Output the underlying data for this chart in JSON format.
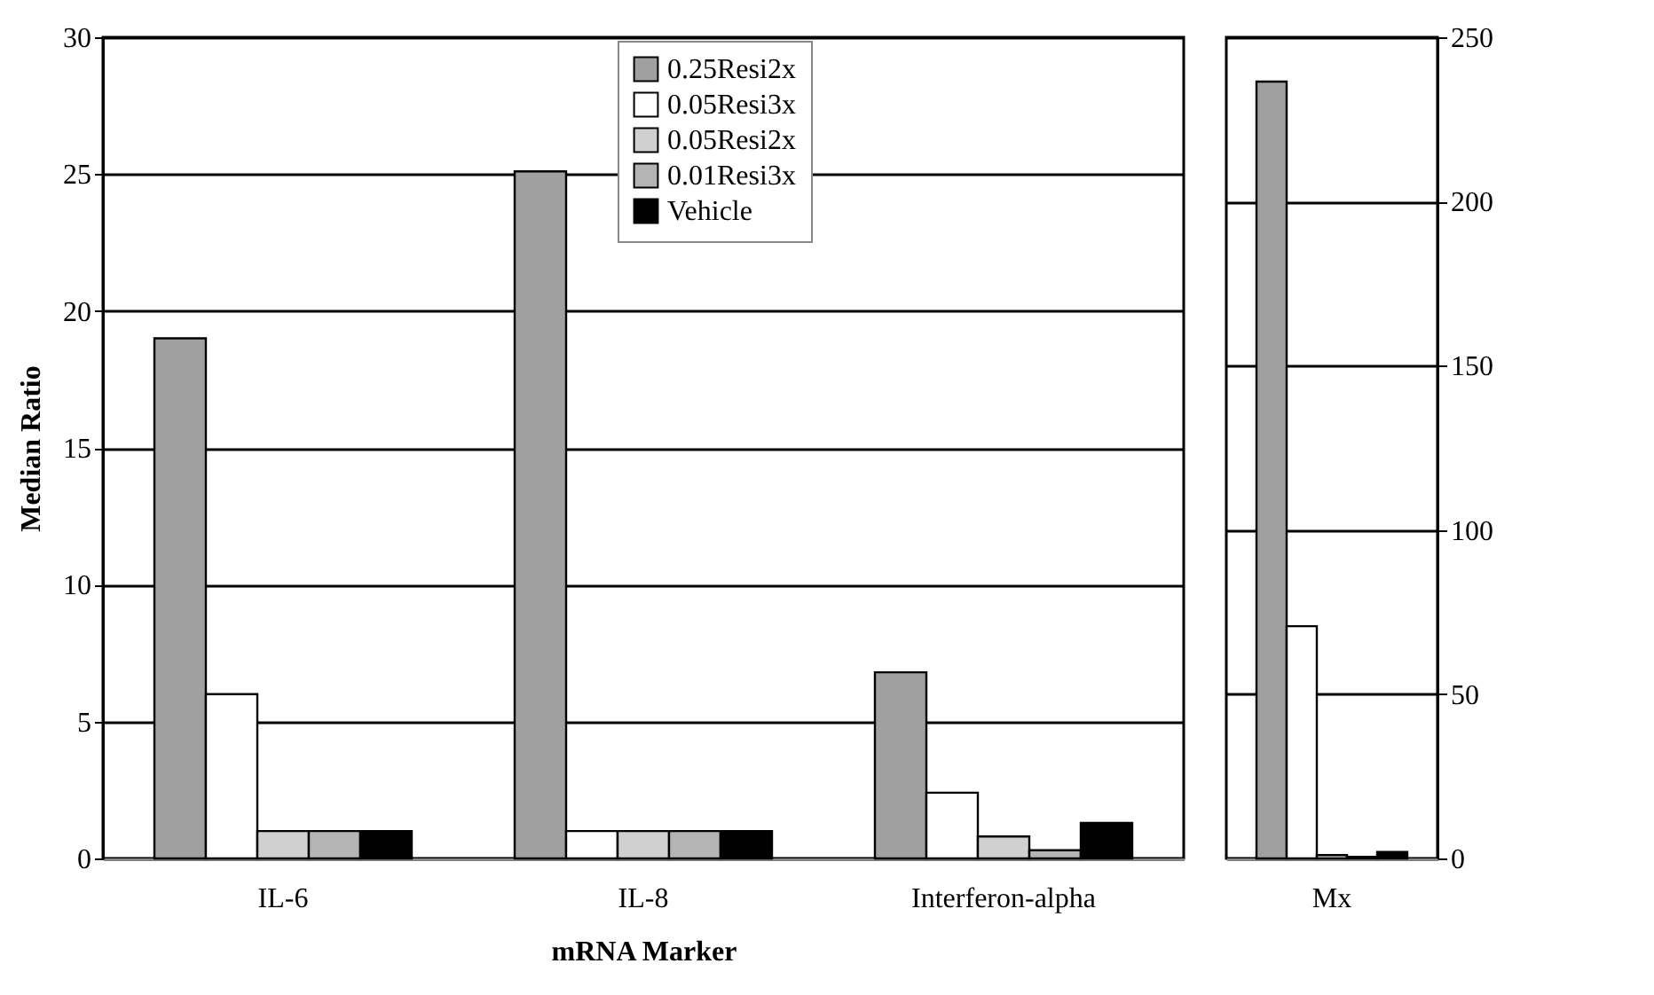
{
  "chart_data": [
    {
      "type": "bar",
      "categories": [
        "IL-6",
        "IL-8",
        "Interferon-alpha"
      ],
      "xlabel": "mRNA Marker",
      "ylabel": "Median Ratio",
      "ylim": [
        0,
        30
      ],
      "yticks": [
        0,
        5,
        10,
        15,
        20,
        25,
        30
      ],
      "grid": "y",
      "legend": "top",
      "series": [
        {
          "name": "0.25Resi2x",
          "color": "#a0a0a0",
          "values": [
            19.0,
            25.1,
            6.8
          ]
        },
        {
          "name": "0.05Resi3x",
          "color": "#ffffff",
          "values": [
            6.0,
            1.0,
            2.4
          ]
        },
        {
          "name": "0.05Resi2x",
          "color": "#d0d0d0",
          "values": [
            1.0,
            1.0,
            0.8
          ]
        },
        {
          "name": "0.01Resi3x",
          "color": "#b4b4b4",
          "values": [
            1.0,
            1.0,
            0.3
          ]
        },
        {
          "name": "Vehicle",
          "color": "#000000",
          "values": [
            1.0,
            1.0,
            1.3
          ]
        }
      ]
    },
    {
      "type": "bar",
      "categories": [
        "Mx"
      ],
      "y2lim": [
        0,
        250
      ],
      "y2ticks": [
        0,
        50,
        100,
        150,
        200,
        250
      ],
      "grid": "y",
      "series": [
        {
          "color": "#a0a0a0",
          "values": [
            236.5
          ],
          "axis": "y2"
        },
        {
          "color": "#ffffff",
          "values": [
            70.7
          ],
          "axis": "y2"
        },
        {
          "color": "#d0d0d0",
          "values": [
            1.0
          ],
          "axis": "y2"
        },
        {
          "color": "#b4b4b4",
          "values": [
            0.5
          ],
          "axis": "y2"
        },
        {
          "color": "#000000",
          "values": [
            2.0
          ],
          "axis": "y2"
        }
      ]
    }
  ]
}
